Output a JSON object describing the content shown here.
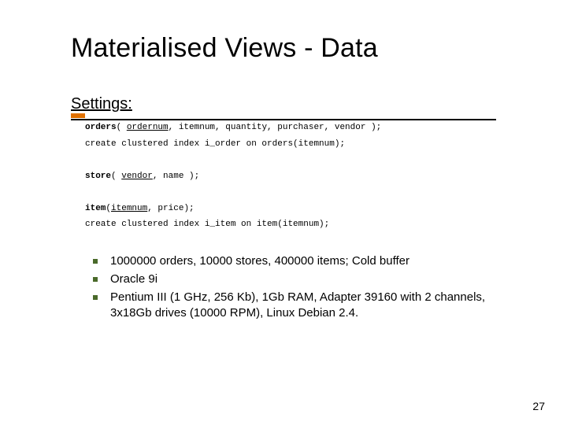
{
  "title": "Materialised Views - Data",
  "settings_label": "Settings:",
  "code": {
    "line1_pre": "orders",
    "line1_mid1": "( ",
    "line1_u1": "ordernum",
    "line1_mid2": ", itemnum,  quantity, purchaser, vendor );",
    "line2": "create clustered index i_order on orders(itemnum);",
    "line3_pre": "store",
    "line3_mid1": "( ",
    "line3_u1": "vendor",
    "line3_mid2": ", name );",
    "line4_pre": "item",
    "line4_mid1": "(",
    "line4_u1": "itemnum",
    "line4_mid2": ", price);",
    "line5": "create clustered index i_item on item(itemnum);"
  },
  "bullets": [
    "1000000 orders, 10000 stores, 400000 items; Cold buffer",
    "Oracle 9i",
    "Pentium III (1 GHz, 256 Kb), 1Gb RAM, Adapter 39160 with 2 channels, 3x18Gb drives (10000 RPM), Linux Debian 2.4."
  ],
  "page_number": "27",
  "colors": {
    "accent_orange": "#e07000",
    "bullet_green": "#4a6a2a",
    "text": "#000000",
    "background": "#ffffff"
  },
  "typography": {
    "title_fontsize": 34,
    "heading_fontsize": 20,
    "code_fontsize": 11,
    "bullet_fontsize": 15,
    "pagenum_fontsize": 14
  }
}
